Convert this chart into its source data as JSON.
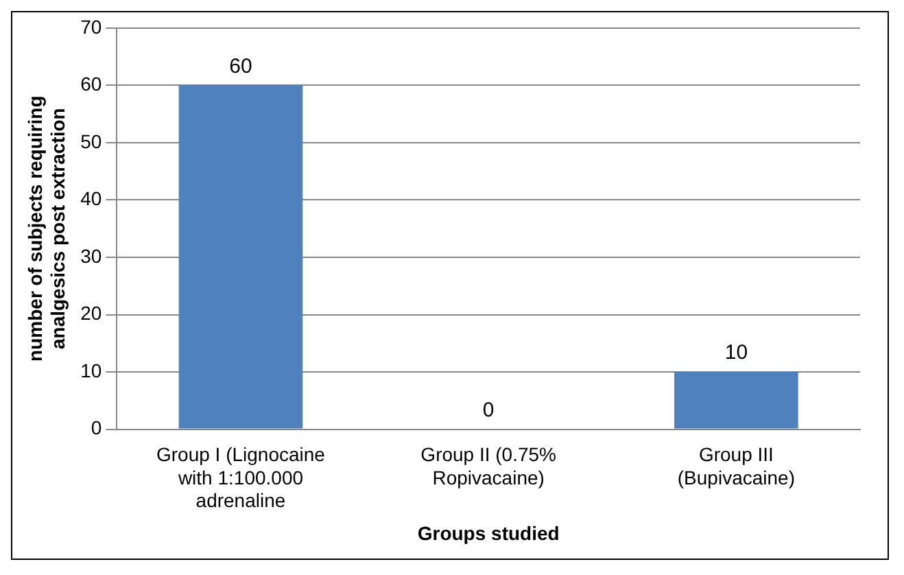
{
  "chart_data": {
    "type": "bar",
    "categories": [
      "Group I (Lignocaine with 1:100.000 adrenaline",
      "Group II (0.75% Ropivacaine)",
      "Group III (Bupivacaine)"
    ],
    "values": [
      60,
      0,
      10
    ],
    "color": "#4f81bd",
    "ylim": [
      0,
      70
    ],
    "yticks": [
      0,
      10,
      20,
      30,
      40,
      50,
      60,
      70
    ],
    "grid": "y",
    "data_labels": true,
    "xlabel": "Groups studied",
    "ylabel": "number of subjects requiring analgesics post extraction"
  }
}
